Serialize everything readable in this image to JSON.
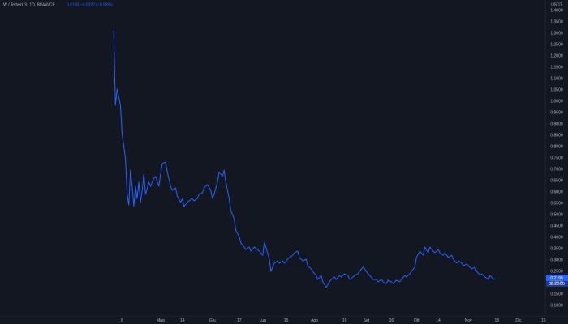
{
  "chart_data": {
    "type": "line",
    "title": "W / TetherUS, 1D, BINANCE",
    "subtitle": "0,2190 −0,0022 (−0,98%)",
    "y_unit": "USDT",
    "last_price_label": "0,2190",
    "countdown": "08:28:00",
    "x": [
      0,
      1,
      2,
      3,
      4,
      5,
      7,
      8,
      9,
      10,
      11,
      12,
      13,
      14,
      15,
      16,
      17,
      18,
      19,
      21,
      22,
      24,
      25,
      27,
      28,
      29,
      31,
      32,
      34,
      35,
      37,
      38,
      40,
      41,
      42,
      44,
      45,
      47,
      48,
      50,
      51,
      53,
      54,
      56,
      58,
      59,
      60,
      62,
      63,
      65,
      66,
      67,
      69,
      70,
      72,
      73,
      75,
      76,
      78,
      79,
      81,
      82,
      84,
      86,
      87,
      89,
      90,
      91,
      93,
      94,
      96,
      98,
      99,
      101,
      102,
      104,
      105,
      107,
      108,
      110,
      111,
      113,
      115,
      116,
      118,
      119,
      121,
      122,
      124,
      125,
      127,
      129,
      130,
      132,
      133,
      135,
      136,
      138,
      140,
      141,
      143,
      144,
      146,
      147,
      149,
      150,
      152,
      154,
      155,
      157,
      158,
      160,
      161,
      163,
      164,
      166,
      167,
      169,
      171,
      172,
      174,
      175,
      177,
      178,
      180,
      181,
      183,
      185,
      186,
      188,
      189,
      191,
      192,
      194,
      195,
      197,
      198,
      200,
      202,
      203,
      205,
      206,
      208,
      209,
      211,
      213,
      214,
      216,
      217,
      219,
      220,
      222,
      224,
      225,
      227,
      228
    ],
    "series": [
      {
        "name": "W / TetherUS",
        "color": "#2962ff",
        "values": [
          1.311,
          0.982,
          1.054,
          1.018,
          0.982,
          0.857,
          0.75,
          0.589,
          0.543,
          0.696,
          0.625,
          0.536,
          0.625,
          0.571,
          0.643,
          0.554,
          0.607,
          0.679,
          0.589,
          0.643,
          0.625,
          0.661,
          0.668,
          0.625,
          0.679,
          0.725,
          0.732,
          0.689,
          0.625,
          0.607,
          0.618,
          0.582,
          0.554,
          0.571,
          0.536,
          0.554,
          0.561,
          0.571,
          0.561,
          0.571,
          0.589,
          0.596,
          0.618,
          0.632,
          0.607,
          0.571,
          0.589,
          0.643,
          0.689,
          0.668,
          0.696,
          0.643,
          0.571,
          0.518,
          0.482,
          0.429,
          0.404,
          0.375,
          0.357,
          0.346,
          0.357,
          0.339,
          0.357,
          0.346,
          0.339,
          0.321,
          0.375,
          0.357,
          0.304,
          0.25,
          0.286,
          0.296,
          0.286,
          0.296,
          0.286,
          0.304,
          0.311,
          0.321,
          0.332,
          0.339,
          0.311,
          0.296,
          0.304,
          0.275,
          0.261,
          0.25,
          0.232,
          0.214,
          0.232,
          0.204,
          0.179,
          0.204,
          0.214,
          0.225,
          0.214,
          0.232,
          0.225,
          0.239,
          0.232,
          0.214,
          0.225,
          0.232,
          0.239,
          0.25,
          0.268,
          0.261,
          0.239,
          0.225,
          0.214,
          0.214,
          0.204,
          0.214,
          0.204,
          0.196,
          0.211,
          0.204,
          0.196,
          0.211,
          0.204,
          0.214,
          0.232,
          0.225,
          0.239,
          0.25,
          0.268,
          0.311,
          0.339,
          0.321,
          0.357,
          0.332,
          0.357,
          0.339,
          0.332,
          0.346,
          0.332,
          0.321,
          0.332,
          0.311,
          0.321,
          0.304,
          0.286,
          0.296,
          0.286,
          0.275,
          0.282,
          0.268,
          0.261,
          0.268,
          0.25,
          0.232,
          0.239,
          0.225,
          0.214,
          0.232,
          0.214,
          0.219
        ]
      }
    ],
    "xlim": [
      -68,
      258
    ],
    "ylim": [
      0.0536,
      1.4464
    ],
    "xticks": [
      {
        "value": 5,
        "label": "8"
      },
      {
        "value": 28,
        "label": "Mag"
      },
      {
        "value": 41,
        "label": "14"
      },
      {
        "value": 59,
        "label": "Giu"
      },
      {
        "value": 75,
        "label": "17"
      },
      {
        "value": 89,
        "label": "Lug"
      },
      {
        "value": 103,
        "label": "15"
      },
      {
        "value": 120,
        "label": "Ago"
      },
      {
        "value": 138,
        "label": "19"
      },
      {
        "value": 151,
        "label": "Set"
      },
      {
        "value": 166,
        "label": "16"
      },
      {
        "value": 181,
        "label": "Ott"
      },
      {
        "value": 194,
        "label": "14"
      },
      {
        "value": 212,
        "label": "Nov"
      },
      {
        "value": 229,
        "label": "18"
      },
      {
        "value": 242,
        "label": "Dic"
      },
      {
        "value": 257,
        "label": "16"
      }
    ],
    "yticks": [
      {
        "value": 1.4,
        "label": "1,4000"
      },
      {
        "value": 1.35,
        "label": "1,3500"
      },
      {
        "value": 1.3,
        "label": "1,3000"
      },
      {
        "value": 1.25,
        "label": "1,2500"
      },
      {
        "value": 1.2,
        "label": "1,2000"
      },
      {
        "value": 1.15,
        "label": "1,1500"
      },
      {
        "value": 1.1,
        "label": "1,1000"
      },
      {
        "value": 1.05,
        "label": "1,0500"
      },
      {
        "value": 1.0,
        "label": "1,0000"
      },
      {
        "value": 0.95,
        "label": "0,9500"
      },
      {
        "value": 0.9,
        "label": "0,9000"
      },
      {
        "value": 0.85,
        "label": "0,8500"
      },
      {
        "value": 0.8,
        "label": "0,8000"
      },
      {
        "value": 0.75,
        "label": "0,7500"
      },
      {
        "value": 0.7,
        "label": "0,7000"
      },
      {
        "value": 0.65,
        "label": "0,6500"
      },
      {
        "value": 0.6,
        "label": "0,6000"
      },
      {
        "value": 0.55,
        "label": "0,5500"
      },
      {
        "value": 0.5,
        "label": "0,5000"
      },
      {
        "value": 0.45,
        "label": "0,4500"
      },
      {
        "value": 0.4,
        "label": "0,4000"
      },
      {
        "value": 0.35,
        "label": "0,3500"
      },
      {
        "value": 0.3,
        "label": "0,3000"
      },
      {
        "value": 0.25,
        "label": "0,2500"
      },
      {
        "value": 0.2,
        "label": "0,2000"
      },
      {
        "value": 0.15,
        "label": "0,1500"
      },
      {
        "value": 0.1,
        "label": "0,1000"
      }
    ],
    "grid": false
  }
}
